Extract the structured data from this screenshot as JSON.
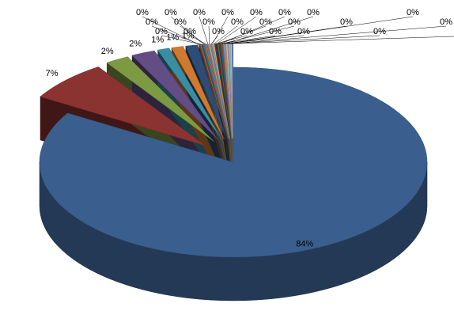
{
  "chart_data": {
    "type": "pie",
    "values": [
      84,
      7,
      2,
      2,
      1,
      1,
      1,
      0.1,
      0.1,
      0.1,
      0.1,
      0.1,
      0.1,
      0.1,
      0.1,
      0.1,
      0.1,
      0.1,
      0.1,
      0.1,
      0.1,
      0.1,
      0.1,
      0.1,
      0.1,
      0.1,
      0.1,
      0.1,
      0.1,
      0.1,
      0.1
    ],
    "value_labels": [
      "84%",
      "7%",
      "2%",
      "2%",
      "1%",
      "1%",
      "1%",
      "0%",
      "0%",
      "0%",
      "0%",
      "0%",
      "0%",
      "0%",
      "0%",
      "0%",
      "0%",
      "0%",
      "0%",
      "0%",
      "0%",
      "0%",
      "0%",
      "0%",
      "0%",
      "0%",
      "0%",
      "0%",
      "0%",
      "0%",
      "0%"
    ],
    "colors": [
      "#3a5f8f",
      "#8b3330",
      "#7d9a43",
      "#634d85",
      "#3a8ea4",
      "#d07a30",
      "#2d4d77",
      "#8f2c2a",
      "#6e8a39",
      "#574479",
      "#347e93",
      "#c26e27",
      "#5b86bf",
      "#c46562",
      "#a6c46e",
      "#8d78ab",
      "#66b5cb",
      "#f5a463",
      "#2b4466",
      "#6f2624",
      "#5c7432",
      "#483968",
      "#2b6a7c",
      "#a35c20",
      "#7a9dcb",
      "#cf8583",
      "#b8d08d",
      "#a594bf",
      "#8bc6d7",
      "#f7b887",
      "#4f81bd"
    ]
  }
}
